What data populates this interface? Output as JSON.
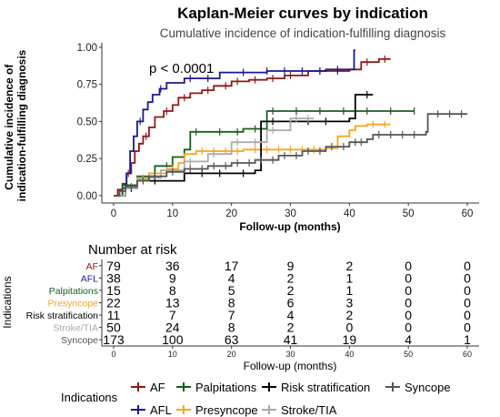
{
  "chart_data": [
    {
      "type": "line",
      "title": "Kaplan-Meier curves by indication",
      "subtitle": "Cumulative incidence of indication-fulfilling diagnosis",
      "xlabel": "Follow-up (months)",
      "ylabel": "Cumulative incidence of\nindication-fulfilling diagnosis",
      "xlim": [
        -2,
        62
      ],
      "ylim": [
        -0.05,
        1.03
      ],
      "x_ticks": [
        0,
        10,
        20,
        30,
        40,
        50,
        60
      ],
      "y_ticks": [
        0.0,
        0.25,
        0.5,
        0.75,
        1.0
      ],
      "y_tick_labels": [
        "0.00",
        "0.25",
        "0.50",
        "0.75",
        "1.00"
      ],
      "grid": false,
      "annotation": "p < 0.0001",
      "series": [
        {
          "name": "AF",
          "color": "#8B1A1A",
          "steps": [
            [
              0,
              0
            ],
            [
              0.7,
              0.04
            ],
            [
              1.5,
              0.08
            ],
            [
              2.2,
              0.15
            ],
            [
              3,
              0.22
            ],
            [
              3.6,
              0.3
            ],
            [
              4.3,
              0.35
            ],
            [
              5,
              0.4
            ],
            [
              6,
              0.46
            ],
            [
              7,
              0.53
            ],
            [
              8.5,
              0.57
            ],
            [
              10,
              0.61
            ],
            [
              11,
              0.66
            ],
            [
              13,
              0.69
            ],
            [
              15,
              0.71
            ],
            [
              17,
              0.74
            ],
            [
              20,
              0.77
            ],
            [
              23,
              0.78
            ],
            [
              26,
              0.79
            ],
            [
              29,
              0.81
            ],
            [
              33,
              0.84
            ],
            [
              40,
              0.85
            ],
            [
              42,
              0.9
            ],
            [
              45,
              0.92
            ],
            [
              47,
              0.92
            ]
          ],
          "censors": [
            2.5,
            5.5,
            9,
            12,
            16,
            19,
            21,
            24,
            27,
            30,
            35,
            38,
            43,
            46
          ]
        },
        {
          "name": "AFL",
          "color": "#1A1A8B",
          "steps": [
            [
              0,
              0
            ],
            [
              1.5,
              0.05
            ],
            [
              2.2,
              0.15
            ],
            [
              2.8,
              0.3
            ],
            [
              3.4,
              0.4
            ],
            [
              4,
              0.5
            ],
            [
              5,
              0.58
            ],
            [
              5.8,
              0.63
            ],
            [
              6.6,
              0.68
            ],
            [
              7.8,
              0.72
            ],
            [
              9,
              0.76
            ],
            [
              12,
              0.79
            ],
            [
              18,
              0.83
            ],
            [
              26,
              0.84
            ],
            [
              36,
              0.85
            ],
            [
              40.8,
              0.85
            ],
            [
              40.8,
              0.98
            ],
            [
              41,
              0.98
            ]
          ],
          "censors": [
            4.5,
            8,
            13,
            16,
            22,
            26,
            29,
            32,
            35,
            38
          ]
        },
        {
          "name": "Palpitations",
          "color": "#1A5E1A",
          "steps": [
            [
              0,
              0
            ],
            [
              1.5,
              0.07
            ],
            [
              4,
              0.13
            ],
            [
              7,
              0.2
            ],
            [
              10,
              0.26
            ],
            [
              12,
              0.31
            ],
            [
              13,
              0.43
            ],
            [
              22,
              0.45
            ],
            [
              26,
              0.57
            ],
            [
              51,
              0.57
            ]
          ],
          "censors": [
            9,
            14,
            18,
            21,
            24,
            27,
            31,
            35,
            39,
            43,
            47,
            51
          ]
        },
        {
          "name": "Presyncope",
          "color": "#F5A623",
          "steps": [
            [
              0,
              0
            ],
            [
              2,
              0.05
            ],
            [
              4,
              0.11
            ],
            [
              6,
              0.15
            ],
            [
              9,
              0.18
            ],
            [
              11,
              0.22
            ],
            [
              12,
              0.28
            ],
            [
              14,
              0.3
            ],
            [
              22,
              0.31
            ],
            [
              36,
              0.32
            ],
            [
              38,
              0.4
            ],
            [
              40,
              0.44
            ],
            [
              41,
              0.47
            ],
            [
              43,
              0.48
            ],
            [
              47,
              0.48
            ]
          ],
          "censors": [
            5,
            10,
            15,
            17,
            19,
            21,
            24,
            26,
            28,
            30,
            32,
            34,
            44,
            46
          ]
        },
        {
          "name": "Risk stratification",
          "color": "#000000",
          "steps": [
            [
              0,
              0
            ],
            [
              2,
              0.05
            ],
            [
              4,
              0.1
            ],
            [
              12,
              0.15
            ],
            [
              24,
              0.17
            ],
            [
              25,
              0.5
            ],
            [
              35,
              0.5
            ],
            [
              40,
              0.52
            ],
            [
              41,
              0.68
            ],
            [
              44,
              0.68
            ]
          ],
          "censors": [
            3,
            7,
            15,
            18,
            22,
            27,
            30,
            33,
            36,
            43
          ]
        },
        {
          "name": "Stroke/TIA",
          "color": "#AAAAAA",
          "steps": [
            [
              0,
              0
            ],
            [
              2,
              0.05
            ],
            [
              4,
              0.12
            ],
            [
              8,
              0.17
            ],
            [
              12,
              0.23
            ],
            [
              16,
              0.28
            ],
            [
              20,
              0.36
            ],
            [
              26,
              0.44
            ],
            [
              30,
              0.52
            ],
            [
              34,
              0.52
            ]
          ],
          "censors": [
            5,
            9,
            13,
            17,
            21,
            24,
            27,
            31,
            33
          ]
        },
        {
          "name": "Syncope",
          "color": "#555555",
          "steps": [
            [
              0,
              0
            ],
            [
              1,
              0.03
            ],
            [
              2,
              0.06
            ],
            [
              4,
              0.1
            ],
            [
              6,
              0.13
            ],
            [
              9,
              0.16
            ],
            [
              12,
              0.18
            ],
            [
              16,
              0.2
            ],
            [
              20,
              0.22
            ],
            [
              24,
              0.24
            ],
            [
              28,
              0.27
            ],
            [
              32,
              0.3
            ],
            [
              36,
              0.33
            ],
            [
              40,
              0.36
            ],
            [
              43,
              0.38
            ],
            [
              44,
              0.41
            ],
            [
              53,
              0.43
            ],
            [
              53.3,
              0.55
            ],
            [
              60,
              0.55
            ]
          ],
          "censors": [
            3,
            5,
            7,
            10,
            13,
            15,
            17,
            19,
            21,
            23,
            25,
            27,
            29,
            31,
            33,
            35,
            37,
            39,
            41,
            42,
            45,
            47,
            49,
            51,
            55,
            57,
            59
          ]
        }
      ]
    },
    {
      "type": "table",
      "title": "Number at risk",
      "xlabel": "Follow-up (months)",
      "ylabel": "Indications",
      "time_points": [
        0,
        10,
        20,
        30,
        40,
        50,
        60
      ],
      "rows": [
        {
          "name": "AF",
          "color": "#8B1A1A",
          "values": [
            "79",
            "36",
            "17",
            "9",
            "2",
            "0",
            "0"
          ]
        },
        {
          "name": "AFL",
          "color": "#1A1A8B",
          "values": [
            "38",
            "9",
            "4",
            "2",
            "1",
            "0",
            "0"
          ]
        },
        {
          "name": "Palpitations",
          "color": "#1A5E1A",
          "values": [
            "15",
            "8",
            "5",
            "2",
            "1",
            "0",
            "0"
          ]
        },
        {
          "name": "Presyncope",
          "color": "#F5A623",
          "values": [
            "22",
            "13",
            "8",
            "6",
            "3",
            "0",
            "0"
          ]
        },
        {
          "name": "Risk stratification",
          "color": "#000000",
          "values": [
            "11",
            "7",
            "7",
            "4",
            "2",
            "0",
            "0"
          ]
        },
        {
          "name": "Stroke/TIA",
          "color": "#AAAAAA",
          "values": [
            "50",
            "24",
            "8",
            "2",
            "0",
            "0",
            "0"
          ]
        },
        {
          "name": "Syncope",
          "color": "#555555",
          "values": [
            "173",
            "100",
            "63",
            "41",
            "19",
            "4",
            "1"
          ]
        }
      ]
    }
  ],
  "legend": {
    "title": "Indications",
    "placement": "bottom",
    "items": [
      {
        "name": "AF",
        "color": "#8B1A1A"
      },
      {
        "name": "Palpitations",
        "color": "#1A5E1A"
      },
      {
        "name": "Risk stratification",
        "color": "#000000"
      },
      {
        "name": "Syncope",
        "color": "#555555"
      },
      {
        "name": "AFL",
        "color": "#1A1A8B"
      },
      {
        "name": "Presyncope",
        "color": "#F5A623"
      },
      {
        "name": "Stroke/TIA",
        "color": "#AAAAAA"
      }
    ]
  }
}
